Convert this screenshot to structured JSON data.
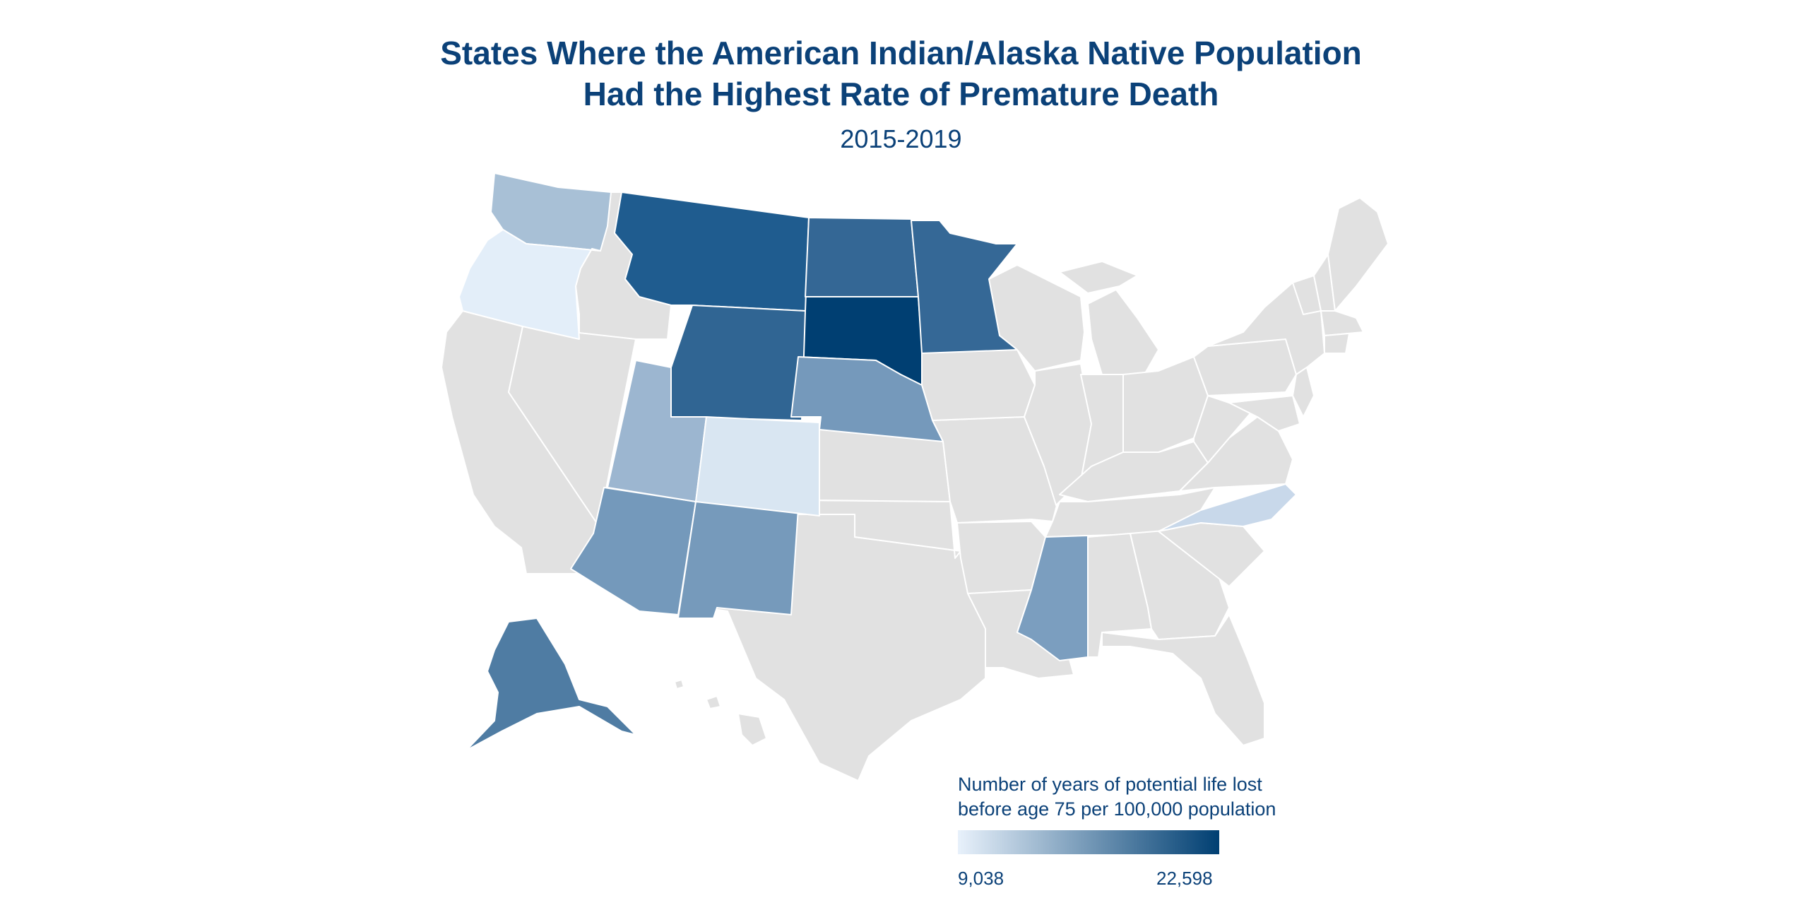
{
  "title_line1": "States Where the American Indian/Alaska Native Population",
  "title_line2": "Had the Highest Rate of Premature Death",
  "subtitle": "2015-2019",
  "legend": {
    "title_line1": "Number of years of potential life lost",
    "title_line2": "before age 75 per 100,000 population",
    "min_label": "9,038",
    "max_label": "22,598",
    "min_value": 9038,
    "max_value": 22598,
    "color_low": "#e8f1fb",
    "color_high": "#003f72"
  },
  "colors": {
    "no_data": "#e1e1e1",
    "border": "#ffffff",
    "text": "#0b4178"
  },
  "states": [
    {
      "id": "SD",
      "name": "South Dakota",
      "value": 22598,
      "color": "#003f72"
    },
    {
      "id": "MT",
      "name": "Montana",
      "value": 20400,
      "color": "#1f5c8f"
    },
    {
      "id": "ND",
      "name": "North Dakota",
      "value": 19500,
      "color": "#346795"
    },
    {
      "id": "WY",
      "name": "Wyoming",
      "value": 19300,
      "color": "#306593"
    },
    {
      "id": "MN",
      "name": "Minnesota",
      "value": 19000,
      "color": "#356896"
    },
    {
      "id": "AK",
      "name": "Alaska",
      "value": 17500,
      "color": "#4f7ca3"
    },
    {
      "id": "NE",
      "name": "Nebraska",
      "value": 15800,
      "color": "#7599bb"
    },
    {
      "id": "AZ",
      "name": "Arizona",
      "value": 15800,
      "color": "#7499bb"
    },
    {
      "id": "NM",
      "name": "New Mexico",
      "value": 15700,
      "color": "#769abb"
    },
    {
      "id": "MS",
      "name": "Mississippi",
      "value": 15600,
      "color": "#7b9ebf"
    },
    {
      "id": "UT",
      "name": "Utah",
      "value": 13400,
      "color": "#9cb6d0"
    },
    {
      "id": "WA",
      "name": "Washington",
      "value": 12900,
      "color": "#a8c0d6"
    },
    {
      "id": "NC",
      "name": "North Carolina",
      "value": 10900,
      "color": "#c8d8ea"
    },
    {
      "id": "CO",
      "name": "Colorado",
      "value": 9700,
      "color": "#d9e6f2"
    },
    {
      "id": "OR",
      "name": "Oregon",
      "value": 9038,
      "color": "#e3eef9"
    }
  ]
}
